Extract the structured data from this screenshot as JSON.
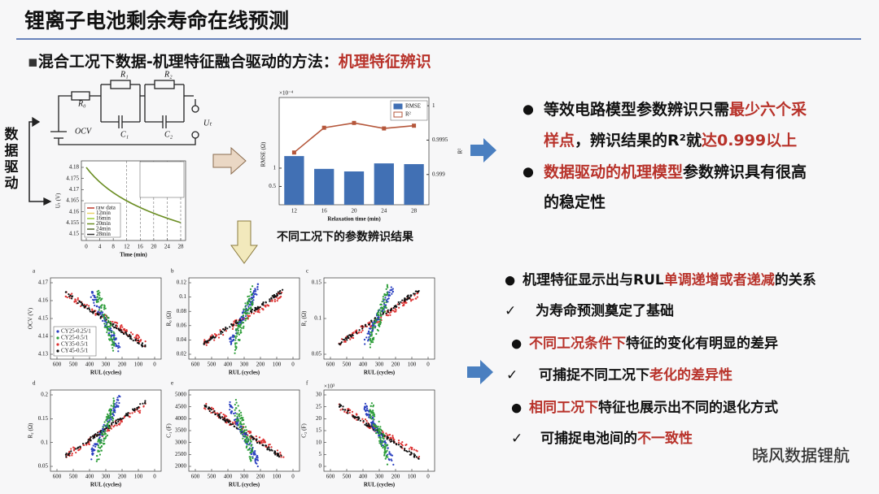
{
  "header": {
    "title": "锂离子电池剩余寿命在线预测"
  },
  "subtitle": {
    "marker": "▪",
    "segments": [
      {
        "text": "混合工况下数据-机理特征融合驱动的方法："
      },
      {
        "text": "机理特征辨识",
        "highlight": true
      }
    ]
  },
  "side_label": "数据驱动",
  "circuit": {
    "labels": [
      "R₀",
      "R₁",
      "R₂",
      "C₁",
      "C₂",
      "OCV",
      "Uₜ"
    ]
  },
  "voltage_plot": {
    "ylabel": "Uₜ (V)",
    "xlabel": "Time (min)",
    "xticks": [
      0,
      4,
      8,
      12,
      16,
      20,
      24,
      28
    ],
    "yticks": [
      4.18,
      4.175,
      4.17,
      4.165,
      4.16,
      4.155,
      4.15
    ],
    "legend": [
      "raw data",
      "12min",
      "16min",
      "20min",
      "24min",
      "28min"
    ]
  },
  "rmse_chart": {
    "type": "bar",
    "x_label": "Relaxation time (min)",
    "y_label": "RMSE (Ω)",
    "y2_label": "R²",
    "y_multiplier": "×10⁻⁴",
    "categories": [
      "12",
      "16",
      "20",
      "24",
      "28"
    ],
    "series": [
      {
        "name": "RMSE",
        "color": "#4170b4",
        "values": [
          1.33,
          0.98,
          0.91,
          1.13,
          1.11
        ]
      },
      {
        "name": "R²",
        "color": "#b5573b",
        "axis": "y2",
        "values": [
          0.99932,
          0.99968,
          0.99975,
          0.99967,
          0.99971
        ]
      }
    ],
    "ylim": [
      0,
      2.93
    ],
    "yticks": [
      0.5,
      1
    ],
    "y2lim": [
      0.99856,
      1.00012
    ],
    "y2ticks": [
      0.999,
      0.9995,
      1
    ]
  },
  "caption": "不同工况下的参数辨识结果",
  "panels": [
    {
      "letter": "a",
      "ylabel": "OCV (V)",
      "xlabel": "RUL (cycles)",
      "yticks": [
        4.17,
        4.16,
        4.15,
        4.14,
        4.13
      ],
      "xticks": [
        600,
        500,
        400,
        300,
        200,
        100,
        0
      ],
      "legend": [
        "CY25-0.25/1",
        "CY25-0.5/1",
        "CY35-0.5/1",
        "CY45-0.5/1"
      ]
    },
    {
      "letter": "b",
      "ylabel": "R₀ (Ω)",
      "xlabel": "RUL (cycles)",
      "yticks": [
        0.12,
        0.1,
        0.08,
        0.06,
        0.04,
        0.02
      ],
      "xticks": [
        600,
        500,
        400,
        300,
        200,
        100,
        0
      ]
    },
    {
      "letter": "c",
      "ylabel": "R₁ (Ω)",
      "xlabel": "RUL (cycles)",
      "yticks": [
        0.15,
        0.1,
        0.05
      ],
      "xticks": [
        600,
        500,
        400,
        300,
        200,
        100,
        0
      ]
    },
    {
      "letter": "d",
      "ylabel": "R₂ (Ω)",
      "xlabel": "RUL (cycles)",
      "yticks": [
        0.2,
        0.15,
        0.1,
        0.05
      ],
      "xticks": [
        600,
        500,
        400,
        300,
        200,
        100,
        0
      ]
    },
    {
      "letter": "e",
      "ylabel": "C₁ (F)",
      "xlabel": "RUL (cycles)",
      "yticks": [
        5000,
        4500,
        4000,
        3500,
        3000,
        2500,
        2000
      ],
      "xticks": [
        600,
        500,
        400,
        300,
        200,
        100,
        0
      ]
    },
    {
      "letter": "f",
      "ylabel": "C₂ (F)",
      "xlabel": "RUL (cycles)",
      "multiplier": "×10³",
      "yticks": [
        30,
        25,
        20,
        15,
        10,
        5,
        0
      ],
      "xticks": [
        600,
        500,
        400,
        300,
        200,
        100,
        0
      ]
    }
  ],
  "bullets_top": [
    {
      "marker": "●",
      "lines": [
        [
          {
            "text": "等效电路模型参数辨识只需"
          },
          {
            "text": "最少六个采",
            "highlight": true
          }
        ],
        [
          {
            "text": "样点",
            "highlight": true
          },
          {
            "text": "，辨识结果的R²就"
          },
          {
            "text": "达0.999以上",
            "highlight": true
          }
        ]
      ]
    },
    {
      "marker": "●",
      "marker_highlight": true,
      "lines": [
        [
          {
            "text": "数据驱动的机理模型",
            "highlight": true
          },
          {
            "text": "参数辨识具有很高"
          }
        ],
        [
          {
            "text": "的稳定性"
          }
        ]
      ]
    }
  ],
  "bullets_bottom": [
    {
      "marker": "●",
      "segments": [
        {
          "text": "机理特征显示出与RUL"
        },
        {
          "text": "单调递增或者递减",
          "highlight": true
        },
        {
          "text": "的关系"
        }
      ]
    },
    {
      "marker": "✓",
      "segments": [
        {
          "text": "为寿命预测奠定了基础"
        }
      ]
    },
    {
      "marker": "●",
      "marker_highlight": true,
      "segments": [
        {
          "text": "不同工况条件下",
          "highlight": true
        },
        {
          "text": "特征的变化有明显的差异"
        }
      ]
    },
    {
      "marker": "✓",
      "segments": [
        {
          "text": "可捕捉不同工况下"
        },
        {
          "text": "老化的差异性",
          "highlight": true
        }
      ]
    },
    {
      "marker": "●",
      "marker_highlight": true,
      "segments": [
        {
          "text": "相同工况下",
          "highlight": true
        },
        {
          "text": "特征也展示出不同的退化方式"
        }
      ]
    },
    {
      "marker": "✓",
      "segments": [
        {
          "text": "可捕捉电池间的"
        },
        {
          "text": "不一致性",
          "highlight": true
        }
      ]
    }
  ],
  "watermark": "晓风数据锂航"
}
